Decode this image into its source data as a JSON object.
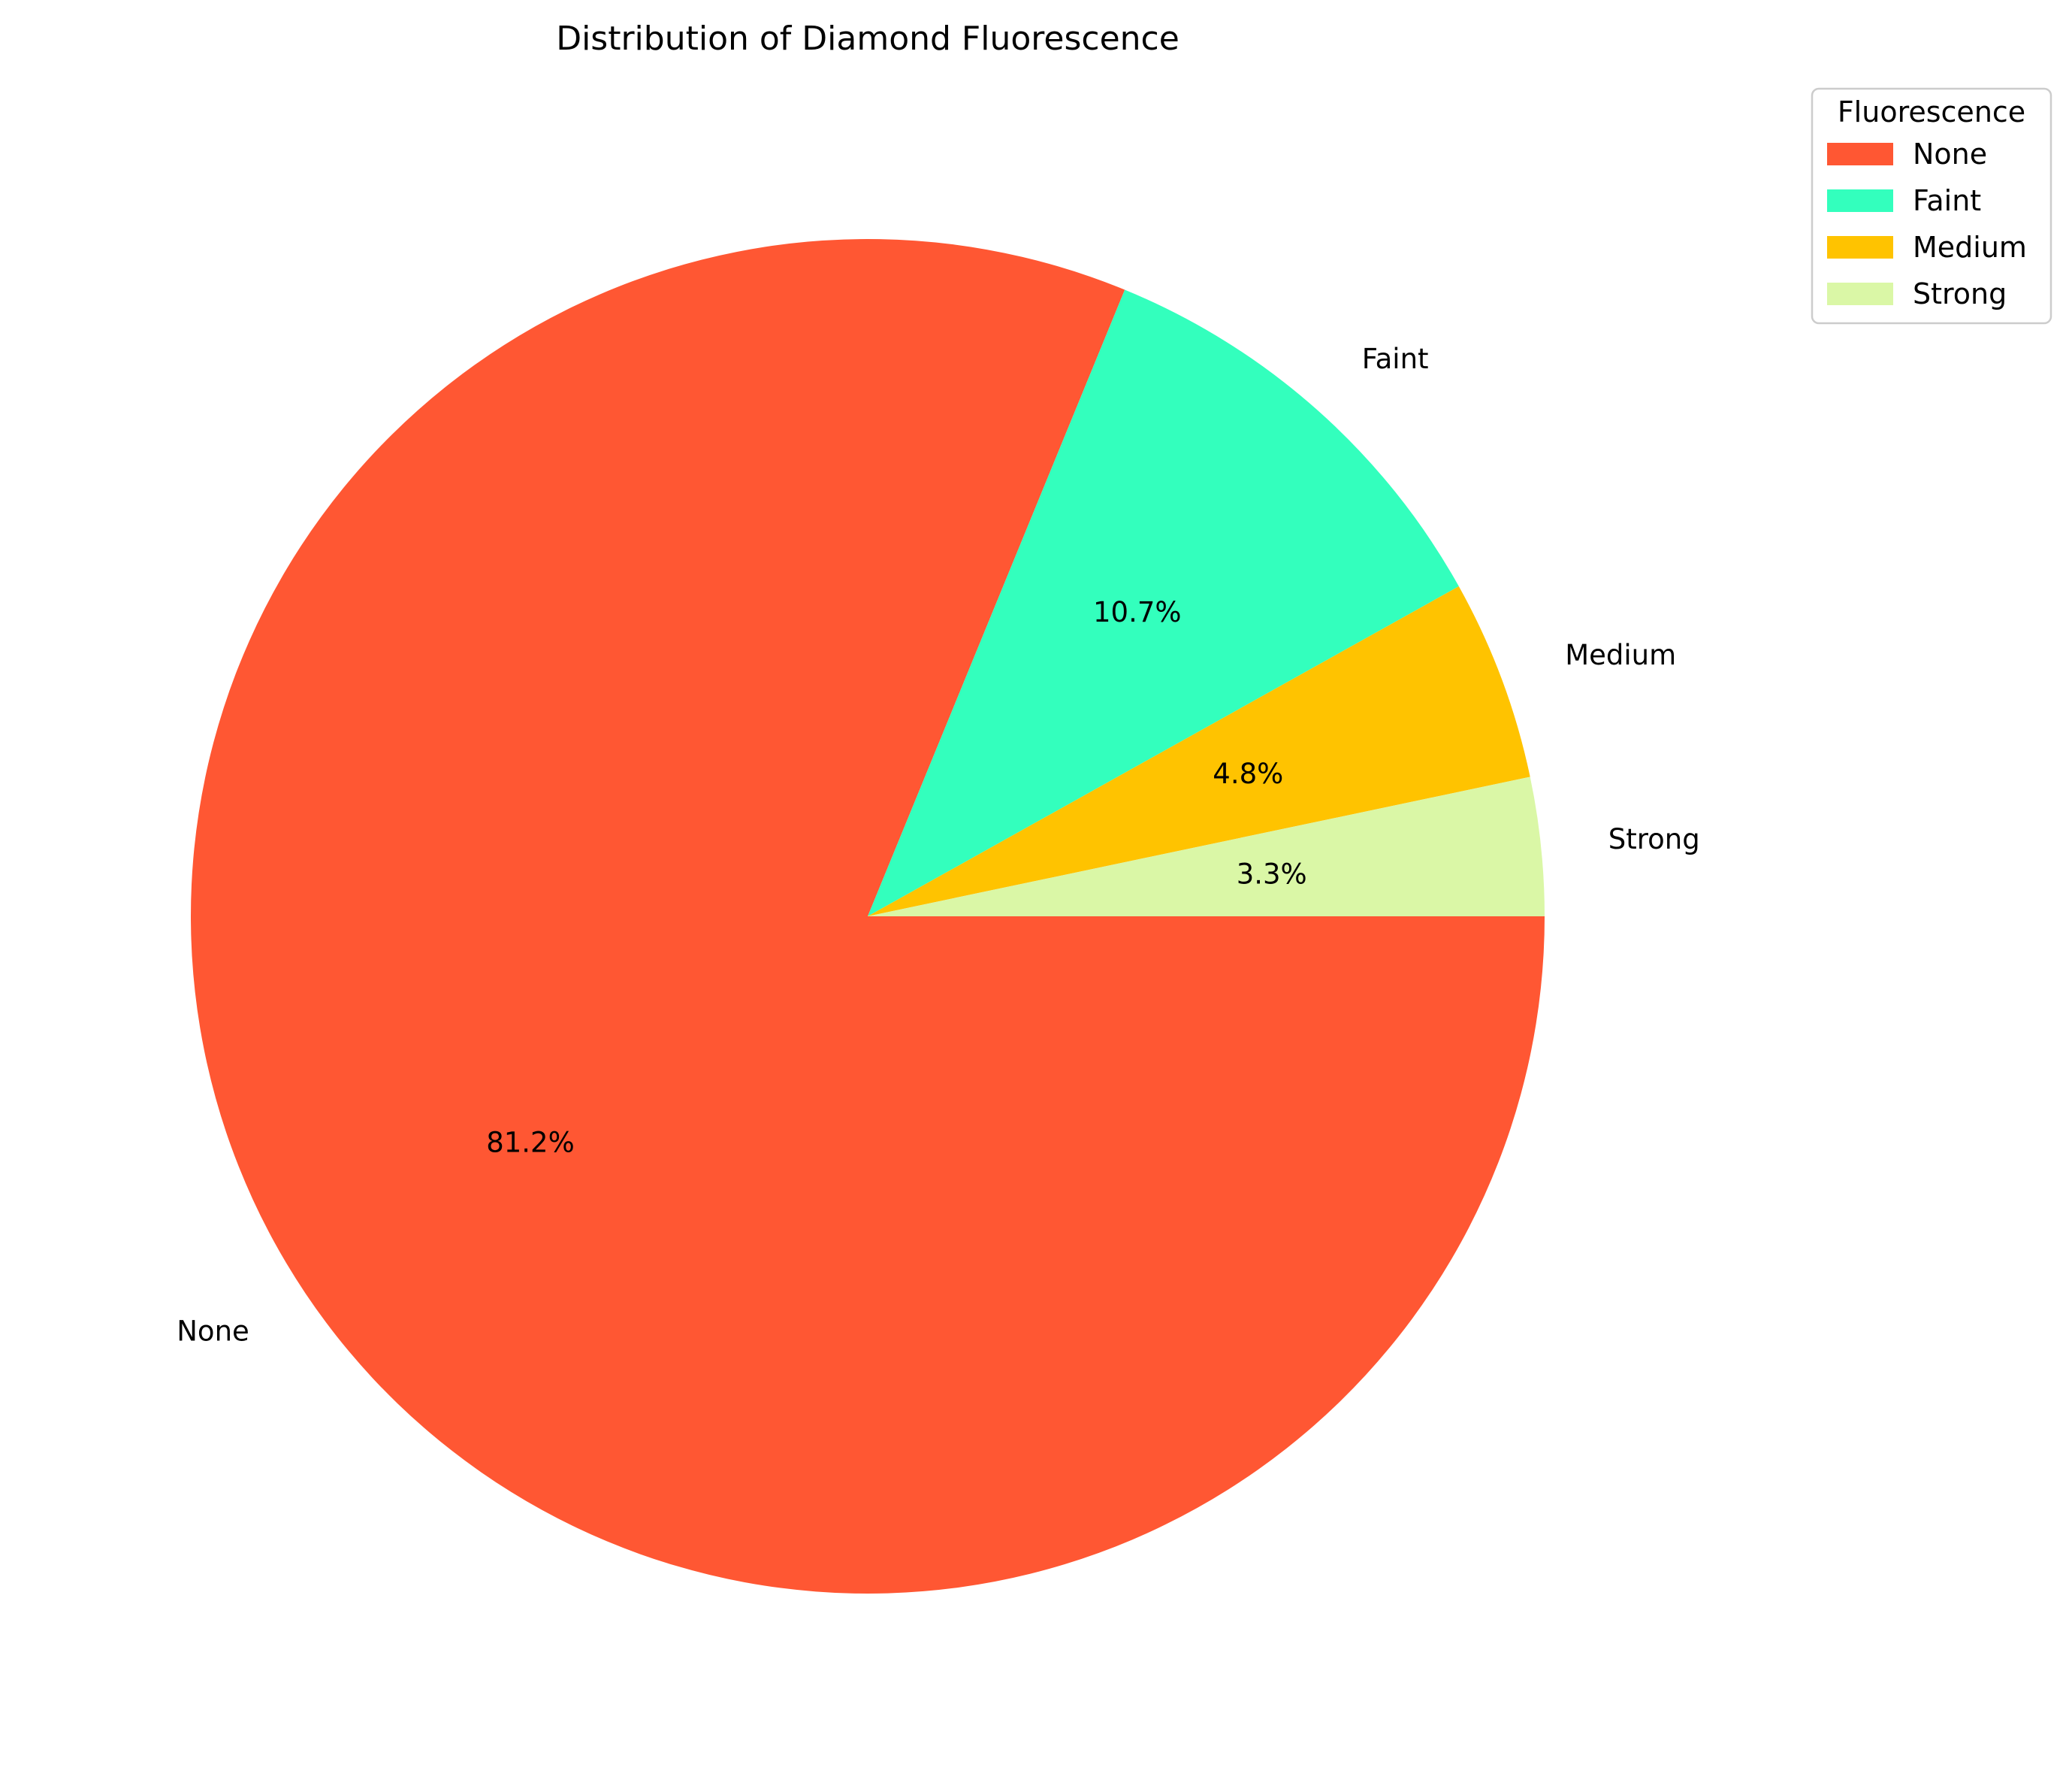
{
  "chart_data": {
    "type": "pie",
    "title": "Distribution of Diamond Fluorescence",
    "categories": [
      "None",
      "Faint",
      "Medium",
      "Strong"
    ],
    "values": [
      81.2,
      10.7,
      4.8,
      3.3
    ],
    "value_labels": [
      "81.2%",
      "10.7%",
      "4.8%",
      "3.3%"
    ],
    "colors": [
      "#FF5733",
      "#33FFBD",
      "#FFC300",
      "#DAF7A6"
    ],
    "start_angle_deg": 0,
    "direction": "clockwise",
    "legend": {
      "title": "Fluorescence",
      "placement": "upper right, outside plot",
      "entries": [
        "None",
        "Faint",
        "Medium",
        "Strong"
      ]
    }
  }
}
